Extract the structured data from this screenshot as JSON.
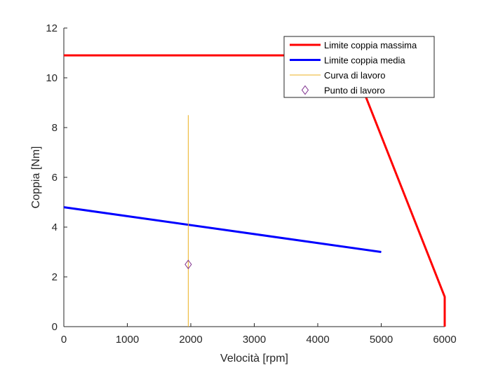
{
  "chart_data": {
    "type": "line",
    "title": "",
    "xlabel": "Velocità [rpm]",
    "ylabel": "Coppia [Nm]",
    "xlim": [
      0,
      6000
    ],
    "ylim": [
      0,
      12
    ],
    "xticks": [
      "0",
      "1000",
      "2000",
      "3000",
      "4000",
      "5000",
      "6000"
    ],
    "yticks": [
      "0",
      "2",
      "4",
      "6",
      "8",
      "10",
      "12"
    ],
    "grid": false,
    "legend_position": "top-right",
    "series": [
      {
        "name": "Limite coppia massima",
        "color": "#ff0000",
        "style": "line",
        "points": [
          [
            0,
            10.9
          ],
          [
            4500,
            10.9
          ],
          [
            6000,
            1.2
          ],
          [
            6000,
            0
          ]
        ]
      },
      {
        "name": "Limite coppia media",
        "color": "#0000ff",
        "style": "line",
        "points": [
          [
            0,
            4.8
          ],
          [
            5000,
            3.0
          ]
        ]
      },
      {
        "name": "Curva di lavoro",
        "color": "#edb120",
        "style": "thin-line",
        "points": [
          [
            1960,
            0
          ],
          [
            1960,
            8.5
          ]
        ]
      },
      {
        "name": "Punto di lavoro",
        "color": "#7e2f8e",
        "style": "diamond-marker",
        "points": [
          [
            1960,
            2.5
          ]
        ]
      }
    ]
  }
}
